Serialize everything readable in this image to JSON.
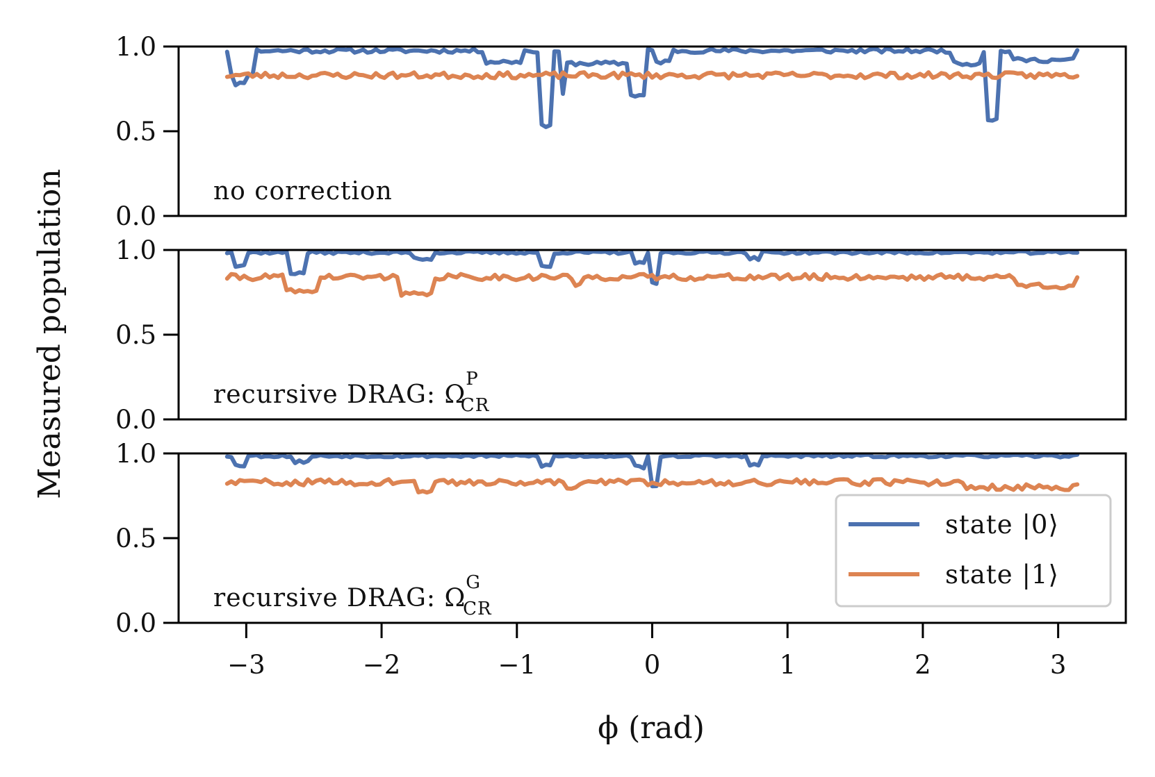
{
  "chart_data": {
    "type": "line",
    "ylabel": "Measured population",
    "xlabel": "ϕ (rad)",
    "xlim": [
      -3.5,
      3.5
    ],
    "ylim": [
      0.0,
      1.0
    ],
    "x_ticks": [
      -3,
      -2,
      -1,
      0,
      1,
      2,
      3
    ],
    "x_tick_labels": [
      "−3",
      "−2",
      "−1",
      "0",
      "1",
      "2",
      "3"
    ],
    "y_ticks": [
      0.0,
      0.5,
      1.0
    ],
    "y_tick_labels": [
      "0.0",
      "0.5",
      "1.0"
    ],
    "x_range": [
      -3.1416,
      3.1416
    ],
    "n_points": 201,
    "colors": {
      "state0": "#4c72b0",
      "state1": "#dd8452"
    },
    "legend": {
      "placement": "lower-right of bottom panel",
      "entries": [
        {
          "label": "state |0⟩",
          "color": "#4c72b0"
        },
        {
          "label": "state |1⟩",
          "color": "#dd8452"
        }
      ]
    },
    "panels": [
      {
        "label": "no correction",
        "label_sup": "",
        "label_sub": "",
        "series": [
          {
            "name": "state |0⟩",
            "color": "#4c72b0",
            "baseline": 0.975,
            "noise": 0.012,
            "seed": 11,
            "segments": [
              [
                -3.14,
                -2.95,
                0.84
              ],
              [
                -1.25,
                -0.95,
                0.91
              ],
              [
                -0.65,
                -0.15,
                0.9
              ],
              [
                0.0,
                0.15,
                0.91
              ],
              [
                2.2,
                2.45,
                0.9
              ],
              [
                2.65,
                3.14,
                0.92
              ]
            ],
            "dips": [
              [
                -3.05,
                0.06,
                0.78
              ],
              [
                -0.79,
                0.05,
                0.53
              ],
              [
                -0.66,
                0.03,
                0.72
              ],
              [
                -0.11,
                0.06,
                0.71
              ],
              [
                2.52,
                0.05,
                0.57
              ]
            ]
          },
          {
            "name": "state |1⟩",
            "color": "#dd8452",
            "baseline": 0.83,
            "noise": 0.018,
            "seed": 23,
            "segments": [],
            "dips": []
          }
        ]
      },
      {
        "label": "recursive DRAG: Ω",
        "label_sup": "P",
        "label_sub": "CR",
        "series": [
          {
            "name": "state |0⟩",
            "color": "#4c72b0",
            "baseline": 0.985,
            "noise": 0.008,
            "seed": 37,
            "segments": [],
            "dips": [
              [
                -3.05,
                0.05,
                0.91
              ],
              [
                -2.62,
                0.07,
                0.86
              ],
              [
                -1.7,
                0.08,
                0.95
              ],
              [
                -0.78,
                0.05,
                0.9
              ],
              [
                -0.1,
                0.04,
                0.92
              ],
              [
                0.02,
                0.03,
                0.8
              ],
              [
                0.75,
                0.05,
                0.95
              ]
            ]
          },
          {
            "name": "state |1⟩",
            "color": "#dd8452",
            "baseline": 0.84,
            "noise": 0.018,
            "seed": 41,
            "segments": [
              [
                2.7,
                3.14,
                0.79
              ]
            ],
            "dips": [
              [
                -2.6,
                0.12,
                0.76
              ],
              [
                -1.75,
                0.12,
                0.74
              ],
              [
                -0.55,
                0.04,
                0.79
              ]
            ]
          }
        ]
      },
      {
        "label": "recursive DRAG: Ω",
        "label_sup": "G",
        "label_sub": "CR",
        "series": [
          {
            "name": "state |0⟩",
            "color": "#4c72b0",
            "baseline": 0.985,
            "noise": 0.008,
            "seed": 53,
            "segments": [],
            "dips": [
              [
                -3.05,
                0.05,
                0.93
              ],
              [
                -2.6,
                0.06,
                0.95
              ],
              [
                -0.78,
                0.05,
                0.93
              ],
              [
                -0.1,
                0.04,
                0.92
              ],
              [
                0.02,
                0.03,
                0.8
              ],
              [
                0.75,
                0.05,
                0.93
              ]
            ]
          },
          {
            "name": "state |1⟩",
            "color": "#dd8452",
            "baseline": 0.83,
            "noise": 0.018,
            "seed": 59,
            "segments": [
              [
                2.3,
                3.14,
                0.8
              ]
            ],
            "dips": [
              [
                -1.68,
                0.06,
                0.77
              ],
              [
                -0.6,
                0.04,
                0.8
              ]
            ]
          }
        ]
      }
    ]
  }
}
